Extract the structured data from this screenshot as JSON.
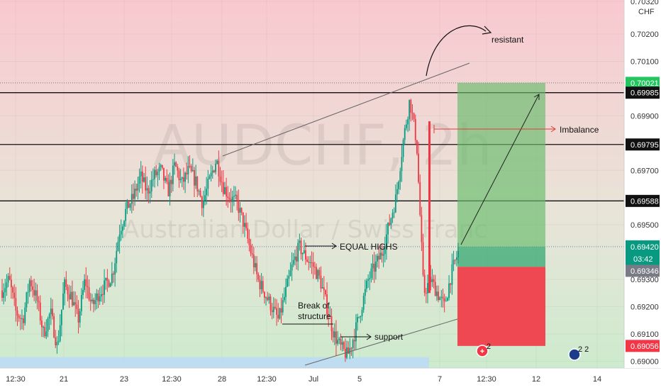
{
  "chart_data": {
    "type": "candlestick",
    "symbol": "AUDCHF",
    "interval": "2h",
    "description": "Australian Dollar / Swiss Franc",
    "currency": "CHF",
    "ylim": [
      0.68975,
      0.70325
    ],
    "y_ticks": [
      "0.70320",
      "0.70200",
      "0.70100",
      "0.69900",
      "0.69700",
      "0.69500",
      "0.69300",
      "0.69200",
      "0.69100",
      "0.69000"
    ],
    "x_ticks": [
      "12:30",
      "21",
      "23",
      "12:30",
      "28",
      "12:30",
      "Jul",
      "5",
      "7",
      "12:30",
      "12",
      "14"
    ],
    "price_path": [
      0.6926,
      0.693,
      0.6918,
      0.6915,
      0.693,
      0.6923,
      0.691,
      0.6918,
      0.6905,
      0.6928,
      0.6924,
      0.6915,
      0.693,
      0.692,
      0.6925,
      0.6928,
      0.6932,
      0.6948,
      0.6956,
      0.696,
      0.6968,
      0.6962,
      0.6968,
      0.697,
      0.6962,
      0.6972,
      0.6965,
      0.697,
      0.6966,
      0.6958,
      0.6966,
      0.6974,
      0.6964,
      0.696,
      0.6958,
      0.695,
      0.694,
      0.693,
      0.6925,
      0.692,
      0.6915,
      0.6925,
      0.6935,
      0.6942,
      0.6938,
      0.6935,
      0.693,
      0.692,
      0.691,
      0.6905,
      0.6902,
      0.691,
      0.692,
      0.693,
      0.6935,
      0.694,
      0.695,
      0.696,
      0.698,
      0.6996,
      0.698,
      0.6925,
      0.693,
      0.6925,
      0.692,
      0.6932,
      0.694
    ],
    "levels": [
      {
        "price": "0.70021",
        "color": "#16a34a"
      },
      {
        "price": "0.69985",
        "color": "#111111"
      },
      {
        "price": "0.69795",
        "color": "#111111"
      },
      {
        "price": "0.69588",
        "color": "#111111"
      },
      {
        "price": "0.69420",
        "color": "#089981"
      },
      {
        "price": "0.69346",
        "color": "#787b86"
      },
      {
        "price": "0.69056",
        "color": "#f23645"
      }
    ],
    "current_price": "0.69420",
    "countdown": "03:42",
    "position": {
      "entry": 0.69346,
      "target": 0.70021,
      "stop": 0.69056
    },
    "annotations": [
      "resistant",
      "Imbalance",
      "EQUAL HIGHS",
      "Break of structure",
      "support"
    ],
    "event_badges": [
      "2",
      "2 2"
    ]
  },
  "colors": {
    "up": "#089981",
    "down": "#f23645",
    "target": "#66bb6a",
    "stop": "#f23645",
    "support_zone": "#bcdcf5"
  }
}
